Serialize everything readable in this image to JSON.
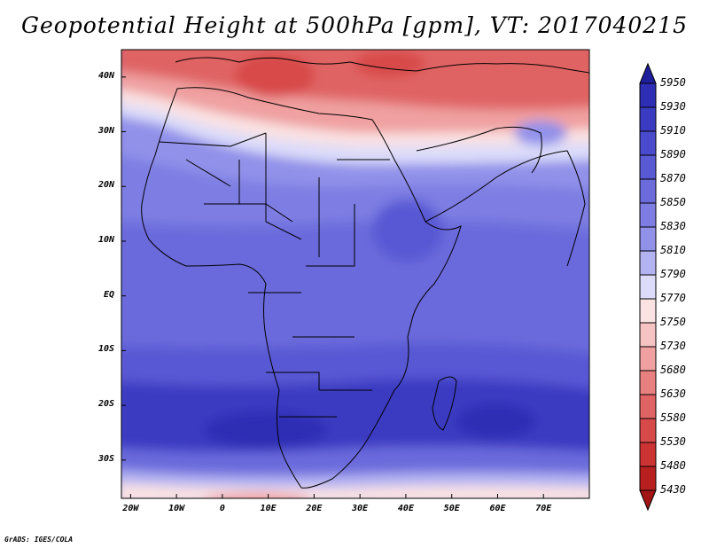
{
  "title": "Geopotential Height at 500hPa [gpm], VT: 2017040215",
  "credit": "GrADS: IGES/COLA",
  "axes": {
    "lat_ticks": [
      {
        "value": 40,
        "label": "40N"
      },
      {
        "value": 30,
        "label": "30N"
      },
      {
        "value": 20,
        "label": "20N"
      },
      {
        "value": 10,
        "label": "10N"
      },
      {
        "value": 0,
        "label": "EQ"
      },
      {
        "value": -10,
        "label": "10S"
      },
      {
        "value": -20,
        "label": "20S"
      },
      {
        "value": -30,
        "label": "30S"
      }
    ],
    "lon_ticks": [
      {
        "value": -20,
        "label": "20W"
      },
      {
        "value": -10,
        "label": "10W"
      },
      {
        "value": 0,
        "label": "0"
      },
      {
        "value": 10,
        "label": "10E"
      },
      {
        "value": 20,
        "label": "20E"
      },
      {
        "value": 30,
        "label": "30E"
      },
      {
        "value": 40,
        "label": "40E"
      },
      {
        "value": 50,
        "label": "50E"
      },
      {
        "value": 60,
        "label": "60E"
      },
      {
        "value": 70,
        "label": "70E"
      }
    ],
    "lon_range": [
      -22,
      80
    ],
    "lat_range": [
      -37,
      45
    ]
  },
  "colorbar": {
    "labels": [
      "5950",
      "5930",
      "5910",
      "5890",
      "5870",
      "5850",
      "5830",
      "5810",
      "5790",
      "5770",
      "5750",
      "5730",
      "5680",
      "5630",
      "5580",
      "5530",
      "5480",
      "5430"
    ],
    "colors": [
      "#1f1f9e",
      "#2d2db5",
      "#3b3bc2",
      "#4a4acc",
      "#5959d4",
      "#6b6bdc",
      "#7d7de3",
      "#9191ea",
      "#b3b3f2",
      "#dcdcfa",
      "#fbe3e3",
      "#f6c2c2",
      "#f0a0a0",
      "#e88080",
      "#e06464",
      "#d84a4a",
      "#cc3333",
      "#b82020",
      "#a31515"
    ]
  },
  "field_colors": {
    "band_40n_north": "#e06464",
    "med_core": "#d84a4a",
    "band_35n": "#f0a0a0",
    "band_33n": "#fbe3e3",
    "band_31n": "#dcdcfa",
    "band_28n": "#9191ea",
    "band_20n": "#7d7de3",
    "tropics": "#6b6bdc",
    "ethiopia_high": "#5959d4",
    "south_tropics": "#5959d4",
    "subtropical_high_s": "#3b3bc2",
    "high_core_s": "#2d2db5",
    "band_33s": "#6b6bdc",
    "band_35s": "#b3b3f2",
    "south_edge": "#fbe3e3",
    "south_low": "#f0a0a0",
    "east_arabia": "#9191ea"
  }
}
